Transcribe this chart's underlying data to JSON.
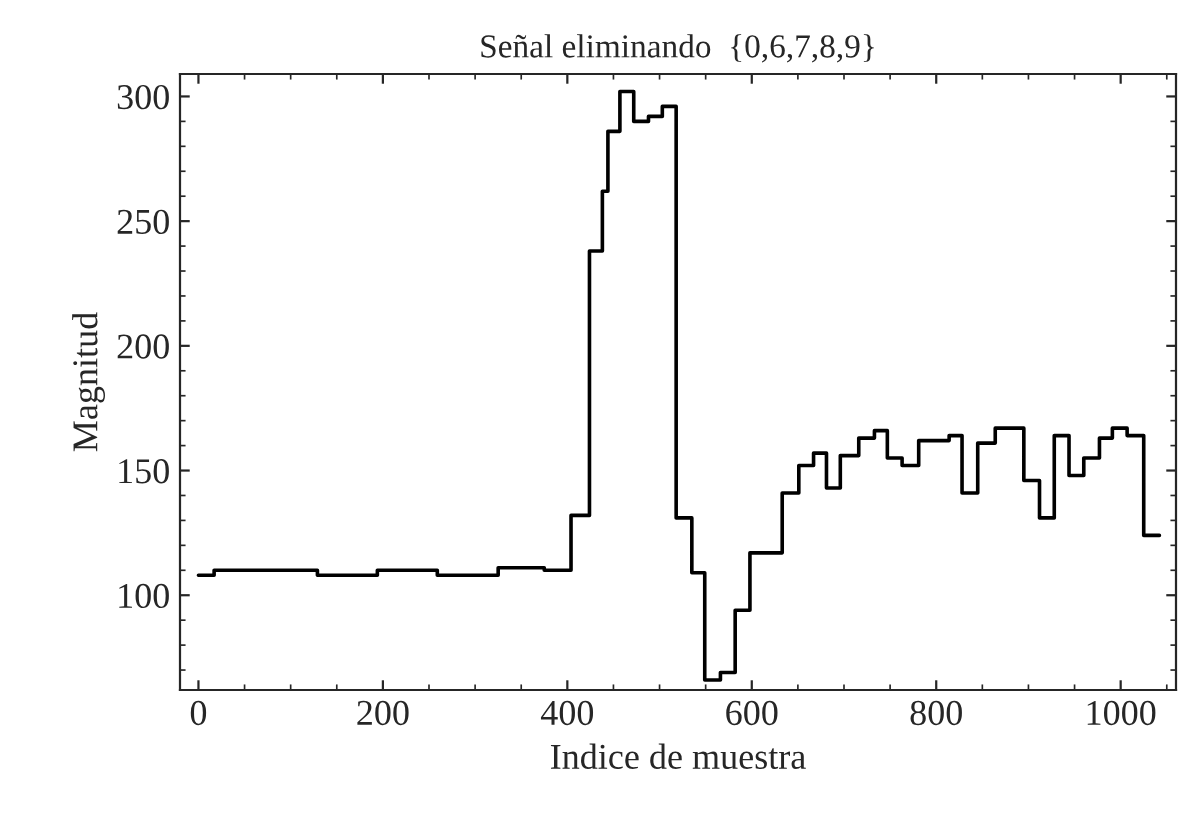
{
  "chart_data": {
    "type": "step",
    "title": "Señal eliminando  {0,6,7,8,9}",
    "xlabel": "Indice de muestra",
    "ylabel": "Magnitud",
    "x": [
      0,
      17,
      129,
      194,
      259,
      325,
      375,
      404,
      424,
      438,
      444,
      457,
      472,
      488,
      503,
      518,
      535,
      549,
      566,
      582,
      598,
      633,
      651,
      667,
      681,
      696,
      716,
      733,
      747,
      763,
      781,
      814,
      828,
      845,
      864,
      895,
      912,
      928,
      944,
      960,
      977,
      991,
      1007,
      1025,
      1042
    ],
    "series": [
      {
        "color": "#000000",
        "values": [
          108,
          110,
          108,
          110,
          108,
          111,
          110,
          132,
          238,
          262,
          286,
          302,
          290,
          292,
          296,
          131,
          109,
          66,
          69,
          94,
          117,
          141,
          152,
          157,
          143,
          156,
          163,
          166,
          155,
          152,
          162,
          164,
          141,
          161,
          167,
          146,
          131,
          164,
          148,
          155,
          163,
          167,
          164,
          124,
          124
        ]
      }
    ],
    "xlim": [
      -20,
      1060
    ],
    "ylim": [
      62,
      309
    ],
    "xticks": [
      0,
      200,
      400,
      600,
      800,
      1000
    ],
    "yticks": [
      100,
      150,
      200,
      250,
      300
    ],
    "grid": false,
    "legend": false,
    "marker": "none",
    "line_style": "solid"
  }
}
